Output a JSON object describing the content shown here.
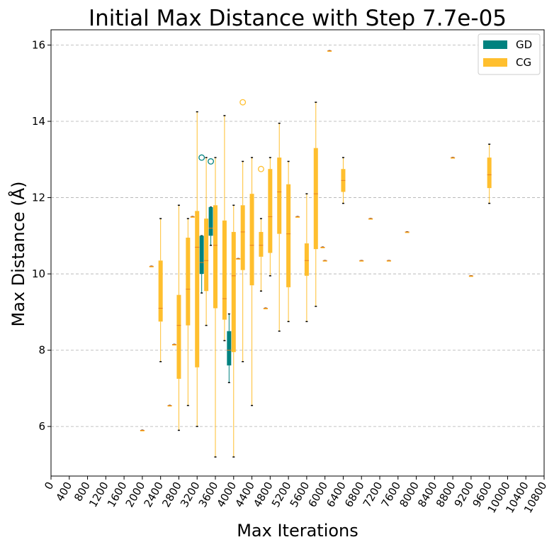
{
  "chart_data": {
    "type": "boxplot",
    "title": "Initial Max Distance with Step 7.7e-05",
    "xlabel": "Max Iterations",
    "ylabel": "Max Distance (Å)",
    "xlim": [
      0,
      10800
    ],
    "ylim": [
      4.7,
      16.4
    ],
    "xticks": [
      0,
      400,
      800,
      1200,
      1600,
      2000,
      2400,
      2800,
      3200,
      3600,
      4000,
      4400,
      4800,
      5200,
      5600,
      6000,
      6400,
      6800,
      7200,
      7600,
      8000,
      8400,
      8800,
      9200,
      9600,
      10000,
      10400,
      10800
    ],
    "yticks": [
      6,
      8,
      10,
      12,
      14,
      16
    ],
    "grid": "y-dashed",
    "legend": {
      "placement": "top-right",
      "entries": [
        {
          "label": "GD",
          "color": "#00827f"
        },
        {
          "label": "CG",
          "color": "#ffbf2e"
        }
      ]
    },
    "series": [
      {
        "name": "GD",
        "color": "#00827f",
        "boxes": [
          {
            "x": 3300,
            "whislo": 9.5,
            "q1": 10.0,
            "med": 10.3,
            "q3": 11.0,
            "whishi": 11.0,
            "fliers": [
              13.05
            ]
          },
          {
            "x": 3500,
            "whislo": 10.75,
            "q1": 11.0,
            "med": 11.2,
            "q3": 11.75,
            "whishi": 11.75,
            "fliers": [
              12.95
            ]
          },
          {
            "x": 3900,
            "whislo": 7.15,
            "q1": 7.6,
            "med": 8.0,
            "q3": 8.5,
            "whishi": 8.95,
            "fliers": []
          }
        ]
      },
      {
        "name": "CG",
        "color": "#ffbf2e",
        "boxes": [
          {
            "x": 2000,
            "whislo": 5.9,
            "q1": 5.9,
            "med": 5.9,
            "q3": 5.9,
            "whishi": 5.9,
            "fliers": []
          },
          {
            "x": 2200,
            "whislo": 10.2,
            "q1": 10.2,
            "med": 10.2,
            "q3": 10.2,
            "whishi": 10.2,
            "fliers": []
          },
          {
            "x": 2400,
            "whislo": 7.7,
            "q1": 8.75,
            "med": 9.1,
            "q3": 10.35,
            "whishi": 11.45,
            "fliers": []
          },
          {
            "x": 2600,
            "whislo": 6.55,
            "q1": 6.55,
            "med": 6.55,
            "q3": 6.55,
            "whishi": 6.55,
            "fliers": []
          },
          {
            "x": 2700,
            "whislo": 8.15,
            "q1": 8.15,
            "med": 8.15,
            "q3": 8.15,
            "whishi": 8.15,
            "fliers": []
          },
          {
            "x": 2800,
            "whislo": 5.9,
            "q1": 7.25,
            "med": 8.65,
            "q3": 9.45,
            "whishi": 11.8,
            "fliers": []
          },
          {
            "x": 3000,
            "whislo": 6.55,
            "q1": 8.65,
            "med": 9.6,
            "q3": 10.95,
            "whishi": 11.45,
            "fliers": []
          },
          {
            "x": 3100,
            "whislo": 11.5,
            "q1": 11.5,
            "med": 11.5,
            "q3": 11.5,
            "whishi": 11.5,
            "fliers": []
          },
          {
            "x": 3200,
            "whislo": 6.0,
            "q1": 7.55,
            "med": 10.7,
            "q3": 11.65,
            "whishi": 14.25,
            "fliers": []
          },
          {
            "x": 3400,
            "whislo": 8.65,
            "q1": 9.55,
            "med": 10.35,
            "q3": 11.45,
            "whishi": 13.05,
            "fliers": []
          },
          {
            "x": 3600,
            "whislo": 5.2,
            "q1": 9.1,
            "med": 10.75,
            "q3": 11.8,
            "whishi": 13.05,
            "fliers": []
          },
          {
            "x": 3800,
            "whislo": 8.25,
            "q1": 8.8,
            "med": 9.35,
            "q3": 11.4,
            "whishi": 14.15,
            "fliers": []
          },
          {
            "x": 4000,
            "whislo": 5.2,
            "q1": 7.95,
            "med": 9.95,
            "q3": 11.1,
            "whishi": 11.8,
            "fliers": []
          },
          {
            "x": 4100,
            "whislo": 10.4,
            "q1": 10.4,
            "med": 10.4,
            "q3": 10.4,
            "whishi": 10.4,
            "fliers": []
          },
          {
            "x": 4200,
            "whislo": 7.7,
            "q1": 10.1,
            "med": 11.1,
            "q3": 11.8,
            "whishi": 12.95,
            "fliers": [
              14.5
            ]
          },
          {
            "x": 4400,
            "whislo": 6.55,
            "q1": 9.7,
            "med": 10.75,
            "q3": 12.1,
            "whishi": 13.05,
            "fliers": []
          },
          {
            "x": 4600,
            "whislo": 9.55,
            "q1": 10.45,
            "med": 10.75,
            "q3": 11.1,
            "whishi": 11.45,
            "fliers": [
              12.75
            ]
          },
          {
            "x": 4700,
            "whislo": 9.1,
            "q1": 9.1,
            "med": 9.1,
            "q3": 9.1,
            "whishi": 9.1,
            "fliers": []
          },
          {
            "x": 4800,
            "whislo": 9.95,
            "q1": 10.55,
            "med": 11.5,
            "q3": 12.75,
            "whishi": 13.05,
            "fliers": []
          },
          {
            "x": 5000,
            "whislo": 8.5,
            "q1": 11.05,
            "med": 12.15,
            "q3": 13.05,
            "whishi": 13.95,
            "fliers": []
          },
          {
            "x": 5200,
            "whislo": 8.75,
            "q1": 9.65,
            "med": 11.05,
            "q3": 12.35,
            "whishi": 12.95,
            "fliers": []
          },
          {
            "x": 5400,
            "whislo": 11.5,
            "q1": 11.5,
            "med": 11.5,
            "q3": 11.5,
            "whishi": 11.5,
            "fliers": []
          },
          {
            "x": 5600,
            "whislo": 8.75,
            "q1": 9.95,
            "med": 10.35,
            "q3": 10.8,
            "whishi": 12.1,
            "fliers": []
          },
          {
            "x": 5800,
            "whislo": 9.15,
            "q1": 10.65,
            "med": 12.1,
            "q3": 13.3,
            "whishi": 14.5,
            "fliers": []
          },
          {
            "x": 5950,
            "whislo": 10.7,
            "q1": 10.7,
            "med": 10.7,
            "q3": 10.7,
            "whishi": 10.7,
            "fliers": []
          },
          {
            "x": 6000,
            "whislo": 10.35,
            "q1": 10.35,
            "med": 10.35,
            "q3": 10.35,
            "whishi": 10.35,
            "fliers": []
          },
          {
            "x": 6100,
            "whislo": 15.85,
            "q1": 15.85,
            "med": 15.85,
            "q3": 15.85,
            "whishi": 15.85,
            "fliers": []
          },
          {
            "x": 6400,
            "whislo": 11.85,
            "q1": 12.15,
            "med": 12.45,
            "q3": 12.75,
            "whishi": 13.05,
            "fliers": []
          },
          {
            "x": 6800,
            "whislo": 10.35,
            "q1": 10.35,
            "med": 10.35,
            "q3": 10.35,
            "whishi": 10.35,
            "fliers": []
          },
          {
            "x": 7000,
            "whislo": 11.45,
            "q1": 11.45,
            "med": 11.45,
            "q3": 11.45,
            "whishi": 11.45,
            "fliers": []
          },
          {
            "x": 7400,
            "whislo": 10.35,
            "q1": 10.35,
            "med": 10.35,
            "q3": 10.35,
            "whishi": 10.35,
            "fliers": []
          },
          {
            "x": 7800,
            "whislo": 11.1,
            "q1": 11.1,
            "med": 11.1,
            "q3": 11.1,
            "whishi": 11.1,
            "fliers": []
          },
          {
            "x": 8800,
            "whislo": 13.05,
            "q1": 13.05,
            "med": 13.05,
            "q3": 13.05,
            "whishi": 13.05,
            "fliers": []
          },
          {
            "x": 9200,
            "whislo": 9.95,
            "q1": 9.95,
            "med": 9.95,
            "q3": 9.95,
            "whishi": 9.95,
            "fliers": []
          },
          {
            "x": 9600,
            "whislo": 11.85,
            "q1": 12.25,
            "med": 12.6,
            "q3": 13.05,
            "whishi": 13.4,
            "fliers": []
          }
        ]
      }
    ]
  }
}
